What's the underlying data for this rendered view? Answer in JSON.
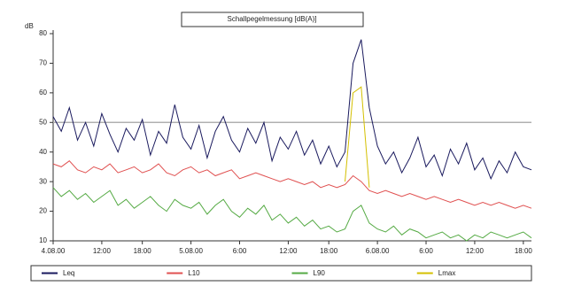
{
  "chart_data": {
    "type": "line",
    "title": "Schallpegelmessung [dB(A)]",
    "ylabel": "dB",
    "x": [
      0,
      1,
      2,
      3,
      4,
      5,
      6,
      7,
      8,
      9,
      10,
      11,
      12,
      13,
      14,
      15,
      16,
      17,
      18,
      19,
      20,
      21,
      22,
      23,
      24,
      25,
      26,
      27,
      28,
      29,
      30,
      31,
      32,
      33,
      34,
      35,
      36,
      37,
      38,
      39,
      40,
      41,
      42,
      43,
      44,
      45,
      46,
      47,
      48,
      49,
      50,
      51,
      52,
      53,
      54,
      55,
      56,
      57,
      58,
      59
    ],
    "xlim": [
      0,
      59
    ],
    "xticks": [
      {
        "value": 0,
        "label": "4.08.00"
      },
      {
        "value": 6,
        "label": "12:00"
      },
      {
        "value": 11,
        "label": "18:00"
      },
      {
        "value": 17,
        "label": "5.08.00"
      },
      {
        "value": 23,
        "label": "6:00"
      },
      {
        "value": 29,
        "label": "12:00"
      },
      {
        "value": 34,
        "label": "18:00"
      },
      {
        "value": 40,
        "label": "6.08.00"
      },
      {
        "value": 46,
        "label": "6:00"
      },
      {
        "value": 52,
        "label": "12:00"
      },
      {
        "value": 58,
        "label": "18:00"
      }
    ],
    "ylim": [
      10,
      80
    ],
    "yticks": [
      10,
      20,
      30,
      40,
      50,
      60,
      70,
      80
    ],
    "threshold": 50,
    "threshold_color": "#b0b0b0",
    "series": [
      {
        "name": "Leq",
        "color": "#1a1a5e",
        "values": [
          52,
          47,
          55,
          44,
          50,
          42,
          53,
          46,
          40,
          48,
          44,
          51,
          39,
          47,
          43,
          56,
          45,
          41,
          49,
          38,
          47,
          52,
          44,
          40,
          48,
          43,
          50,
          37,
          45,
          41,
          47,
          39,
          44,
          36,
          42,
          35,
          40,
          70,
          78,
          55,
          42,
          36,
          40,
          33,
          38,
          45,
          35,
          39,
          32,
          41,
          36,
          43,
          34,
          38,
          31,
          37,
          33,
          40,
          35,
          34
        ]
      },
      {
        "name": "L10",
        "color": "#e05050",
        "values": [
          36,
          35,
          37,
          34,
          33,
          35,
          34,
          36,
          33,
          34,
          35,
          33,
          34,
          36,
          33,
          32,
          34,
          35,
          33,
          34,
          32,
          33,
          34,
          31,
          32,
          33,
          32,
          31,
          30,
          31,
          30,
          29,
          30,
          28,
          29,
          28,
          29,
          32,
          30,
          27,
          26,
          27,
          26,
          25,
          26,
          25,
          24,
          25,
          24,
          23,
          24,
          23,
          22,
          23,
          22,
          23,
          22,
          21,
          22,
          21
        ]
      },
      {
        "name": "L90",
        "color": "#55aa44",
        "values": [
          28,
          25,
          27,
          24,
          26,
          23,
          25,
          27,
          22,
          24,
          21,
          23,
          25,
          22,
          20,
          24,
          22,
          21,
          23,
          19,
          22,
          24,
          20,
          18,
          21,
          19,
          22,
          17,
          19,
          16,
          18,
          15,
          17,
          14,
          15,
          13,
          14,
          20,
          22,
          16,
          14,
          13,
          15,
          12,
          14,
          13,
          11,
          12,
          13,
          11,
          12,
          10,
          12,
          11,
          13,
          12,
          11,
          12,
          13,
          11
        ]
      },
      {
        "name": "Lmax",
        "color": "#d4c000",
        "values": [
          null,
          null,
          null,
          null,
          null,
          null,
          null,
          null,
          null,
          null,
          null,
          null,
          null,
          null,
          null,
          null,
          null,
          null,
          null,
          null,
          null,
          null,
          null,
          null,
          null,
          null,
          null,
          null,
          null,
          null,
          null,
          null,
          null,
          null,
          null,
          null,
          30,
          60,
          62,
          28,
          null,
          null,
          null,
          null,
          null,
          null,
          null,
          null,
          null,
          null,
          null,
          null,
          null,
          null,
          null,
          null,
          null,
          null,
          null,
          null
        ]
      }
    ]
  }
}
